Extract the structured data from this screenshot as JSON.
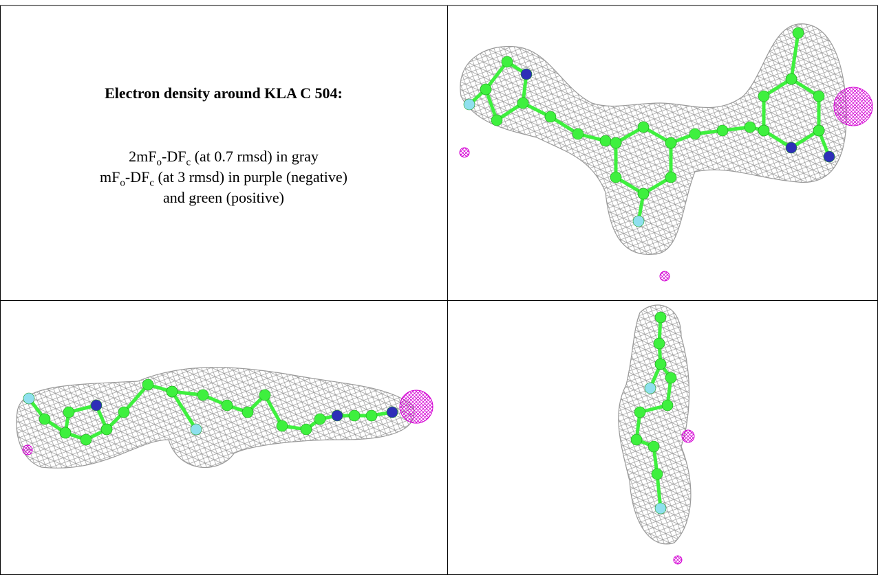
{
  "title": "Electron density around KLA C 504:",
  "legend_lines": [
    [
      {
        "text": "2mF"
      },
      {
        "sub": "o"
      },
      {
        "text": "-DF"
      },
      {
        "sub": "c"
      },
      {
        "text": " (at 0.7 rmsd) in gray"
      }
    ],
    [
      {
        "text": "mF"
      },
      {
        "sub": "o"
      },
      {
        "text": "-DF"
      },
      {
        "sub": "c"
      },
      {
        "text": " (at 3 rmsd) in purple (negative)"
      }
    ],
    [
      {
        "text": "and green (positive)"
      }
    ]
  ]
}
